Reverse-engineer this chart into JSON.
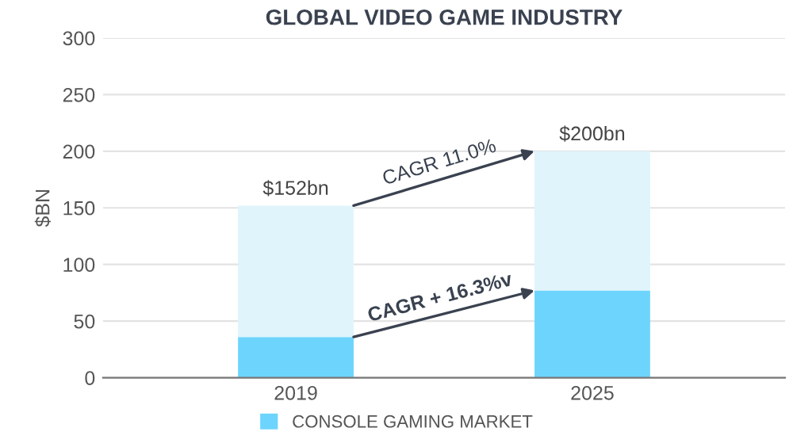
{
  "chart_data": {
    "type": "bar",
    "title": "GLOBAL VIDEO GAME INDUSTRY",
    "ylabel": "$BN",
    "categories": [
      "2019",
      "2025"
    ],
    "stacked": true,
    "series": [
      {
        "name": "CONSOLE GAMING MARKET",
        "color": "#6dd5fd",
        "values": [
          36,
          77
        ]
      },
      {
        "color": "#e0f4fc",
        "values": [
          116,
          123
        ]
      }
    ],
    "totals": [
      "$152bn",
      "$200bn"
    ],
    "annotations": [
      "CAGR 11.0%",
      "CAGR + 16.3%v"
    ],
    "ylim": [
      0,
      300
    ],
    "yticks": [
      0,
      50,
      100,
      150,
      200,
      250,
      300
    ],
    "grid": "y",
    "legend": "bottom"
  }
}
